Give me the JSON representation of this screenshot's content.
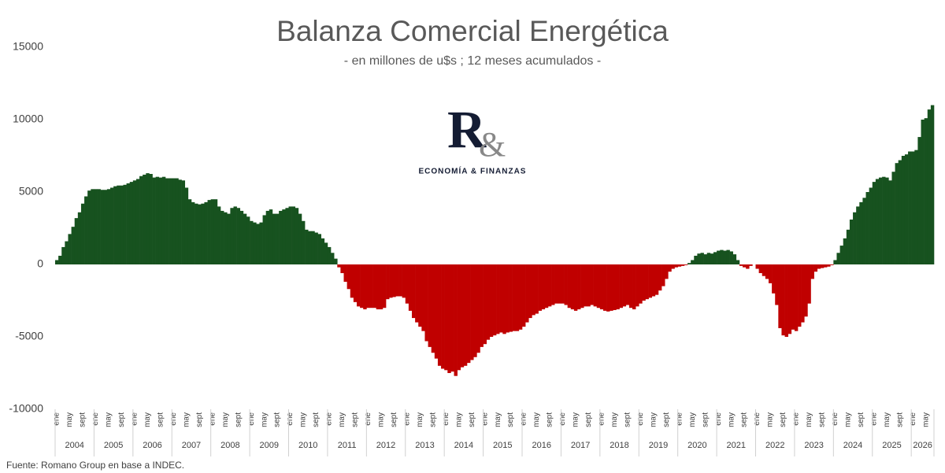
{
  "chart_data": {
    "type": "bar",
    "title": "Balanza Comercial Energética",
    "subtitle": "- en millones de u$s ; 12 meses acumulados -",
    "source": "Fuente: Romano Group en base a INDEC.",
    "logo": {
      "mark": "R",
      "ampersand": "&",
      "tagline": "ECONOMÍA & FINANZAS"
    },
    "years": [
      "2004",
      "2005",
      "2006",
      "2007",
      "2008",
      "2009",
      "2010",
      "2011",
      "2012",
      "2013",
      "2014",
      "2015",
      "2016",
      "2017",
      "2018",
      "2019",
      "2020",
      "2021",
      "2022",
      "2023",
      "2024",
      "2025",
      "2026"
    ],
    "categories": [
      "ene",
      null,
      null,
      null,
      "may",
      null,
      null,
      null,
      "sept",
      null,
      null,
      null,
      "ene",
      null,
      null,
      null,
      "may",
      null,
      null,
      null,
      "sept",
      null,
      null,
      null,
      "ene",
      null,
      null,
      null,
      "may",
      null,
      null,
      null,
      "sept",
      null,
      null,
      null,
      "ene",
      null,
      null,
      null,
      "may",
      null,
      null,
      null,
      "sept",
      null,
      null,
      null,
      "ene",
      null,
      null,
      null,
      "may",
      null,
      null,
      null,
      "sept",
      null,
      null,
      null,
      "ene",
      null,
      null,
      null,
      "may",
      null,
      null,
      null,
      "sept",
      null,
      null,
      null,
      "ene",
      null,
      null,
      null,
      "may",
      null,
      null,
      null,
      "sept",
      null,
      null,
      null,
      "ene",
      null,
      null,
      null,
      "may",
      null,
      null,
      null,
      "sept",
      null,
      null,
      null,
      "ene",
      null,
      null,
      null,
      "may",
      null,
      null,
      null,
      "sept",
      null,
      null,
      null,
      "ene",
      null,
      null,
      null,
      "may",
      null,
      null,
      null,
      "sept",
      null,
      null,
      null,
      "ene",
      null,
      null,
      null,
      "may",
      null,
      null,
      null,
      "sept",
      null,
      null,
      null,
      "ene",
      null,
      null,
      null,
      "may",
      null,
      null,
      null,
      "sept",
      null,
      null,
      null,
      "ene",
      null,
      null,
      null,
      "may",
      null,
      null,
      null,
      "sept",
      null,
      null,
      null,
      "ene",
      null,
      null,
      null,
      "may",
      null,
      null,
      null,
      "sept",
      null,
      null,
      null,
      "ene",
      null,
      null,
      null,
      "may",
      null,
      null,
      null,
      "sept",
      null,
      null,
      null,
      "ene",
      null,
      null,
      null,
      "may",
      null,
      null,
      null,
      "sept",
      null,
      null,
      null,
      "ene",
      null,
      null,
      null,
      "may",
      null,
      null,
      null,
      "sept",
      null,
      null,
      null,
      "ene",
      null,
      null,
      null,
      "may",
      null,
      null,
      null,
      "sept",
      null,
      null,
      null,
      "ene",
      null,
      null,
      null,
      "may",
      null,
      null,
      null,
      "sept",
      null,
      null,
      null,
      "ene",
      null,
      null,
      null,
      "may",
      null,
      null,
      null,
      "sept",
      null,
      null,
      null,
      "ene",
      null,
      null,
      null,
      "may",
      null,
      null,
      null,
      "sept",
      null,
      null,
      null,
      "ene",
      null,
      null,
      null,
      "may",
      null,
      null,
      null,
      "sept",
      null,
      null,
      null,
      "ene",
      null,
      null,
      null,
      "may",
      null,
      null
    ],
    "values": [
      300,
      600,
      1200,
      1600,
      2100,
      2600,
      3200,
      3600,
      4200,
      4700,
      5100,
      5200,
      5200,
      5200,
      5150,
      5150,
      5200,
      5300,
      5400,
      5450,
      5450,
      5500,
      5600,
      5700,
      5800,
      5900,
      6100,
      6200,
      6300,
      6250,
      6000,
      6050,
      6000,
      6050,
      5950,
      5950,
      5950,
      5950,
      5850,
      5800,
      5300,
      4500,
      4300,
      4200,
      4150,
      4200,
      4300,
      4450,
      4500,
      4500,
      4000,
      3700,
      3600,
      3500,
      3900,
      4000,
      3900,
      3700,
      3500,
      3300,
      3000,
      2900,
      2800,
      2900,
      3400,
      3700,
      3800,
      3500,
      3500,
      3700,
      3800,
      3900,
      4000,
      4000,
      3900,
      3500,
      3000,
      2400,
      2300,
      2300,
      2200,
      2100,
      1800,
      1500,
      1200,
      800,
      400,
      -200,
      -600,
      -1200,
      -1700,
      -2300,
      -2600,
      -2900,
      -3000,
      -3100,
      -3000,
      -3000,
      -3000,
      -3100,
      -3100,
      -3000,
      -2400,
      -2300,
      -2250,
      -2200,
      -2200,
      -2300,
      -2700,
      -3200,
      -3700,
      -4000,
      -4300,
      -4600,
      -5300,
      -5700,
      -6100,
      -6500,
      -7000,
      -7200,
      -7300,
      -7500,
      -7400,
      -7700,
      -7300,
      -7100,
      -7000,
      -6800,
      -6600,
      -6400,
      -6100,
      -5700,
      -5500,
      -5200,
      -5000,
      -4900,
      -4800,
      -4700,
      -4800,
      -4700,
      -4650,
      -4600,
      -4600,
      -4500,
      -4300,
      -4000,
      -3700,
      -3500,
      -3400,
      -3200,
      -3100,
      -3000,
      -2900,
      -2800,
      -2700,
      -2700,
      -2700,
      -2800,
      -3000,
      -3100,
      -3200,
      -3100,
      -3000,
      -2900,
      -2900,
      -2800,
      -2900,
      -3000,
      -3100,
      -3200,
      -3250,
      -3200,
      -3150,
      -3100,
      -3000,
      -2900,
      -2800,
      -3000,
      -3100,
      -2900,
      -2700,
      -2500,
      -2400,
      -2300,
      -2200,
      -2100,
      -1800,
      -1500,
      -1000,
      -500,
      -300,
      -200,
      -150,
      -100,
      -50,
      100,
      300,
      600,
      750,
      800,
      700,
      800,
      750,
      850,
      950,
      1000,
      950,
      1000,
      900,
      700,
      300,
      -100,
      -200,
      -300,
      -100,
      0,
      -300,
      -600,
      -800,
      -1000,
      -1300,
      -2000,
      -2800,
      -4400,
      -4900,
      -5000,
      -4800,
      -4500,
      -4600,
      -4300,
      -4000,
      -3600,
      -2700,
      -1000,
      -500,
      -300,
      -250,
      -200,
      -150,
      -50,
      300,
      800,
      1300,
      1800,
      2400,
      3100,
      3600,
      4000,
      4300,
      4600,
      5000,
      5300,
      5700,
      5900,
      6000,
      6050,
      6000,
      5800,
      6400,
      7000,
      7200,
      7500,
      7600,
      7800,
      7800,
      7900,
      8800,
      10000,
      10100,
      10700,
      11000
    ],
    "positive_color": "#17521f",
    "negative_color": "#c00000",
    "ylim": [
      -10000,
      15000
    ],
    "yticks": [
      -10000,
      -5000,
      0,
      5000,
      10000,
      15000
    ],
    "grid": false
  }
}
